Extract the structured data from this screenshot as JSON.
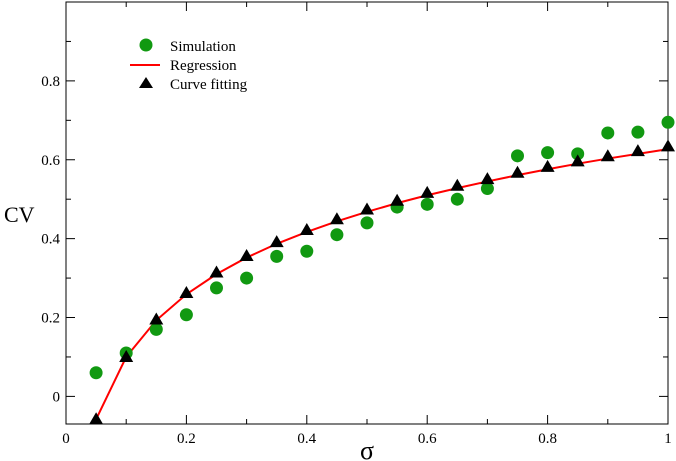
{
  "chart_data": {
    "type": "scatter",
    "xlabel": "σ",
    "ylabel": "CV",
    "xlim": [
      0,
      1
    ],
    "ylim": [
      -0.07,
      1.0
    ],
    "x_ticks": [
      0,
      0.2,
      0.4,
      0.6,
      0.8,
      1
    ],
    "x_tick_labels": [
      "0",
      "0.2",
      "0.4",
      "0.6",
      "0.8",
      "1"
    ],
    "y_ticks": [
      0,
      0.2,
      0.4,
      0.6,
      0.8
    ],
    "y_tick_labels": [
      "0",
      "0.2",
      "0.4",
      "0.6",
      "0.8"
    ],
    "grid": false,
    "legend_position": "top-left",
    "series": [
      {
        "name": "Simulation",
        "kind": "circle-markers",
        "color": "#119911",
        "x": [
          0.05,
          0.1,
          0.15,
          0.2,
          0.25,
          0.3,
          0.35,
          0.4,
          0.45,
          0.5,
          0.55,
          0.6,
          0.65,
          0.7,
          0.75,
          0.8,
          0.85,
          0.9,
          0.95,
          1.0
        ],
        "y": [
          0.06,
          0.11,
          0.17,
          0.207,
          0.275,
          0.3,
          0.355,
          0.368,
          0.41,
          0.44,
          0.48,
          0.487,
          0.5,
          0.527,
          0.61,
          0.618,
          0.615,
          0.668,
          0.67,
          0.695
        ]
      },
      {
        "name": "Regression",
        "kind": "line",
        "color": "#ff0000",
        "x": [
          0.05,
          0.1,
          0.15,
          0.2,
          0.25,
          0.3,
          0.35,
          0.4,
          0.45,
          0.5,
          0.55,
          0.6,
          0.65,
          0.7,
          0.75,
          0.8,
          0.85,
          0.9,
          0.95,
          1.0
        ],
        "y": [
          -0.058,
          0.1,
          0.193,
          0.259,
          0.31,
          0.352,
          0.387,
          0.417,
          0.444,
          0.468,
          0.49,
          0.51,
          0.528,
          0.545,
          0.561,
          0.576,
          0.59,
          0.603,
          0.615,
          0.627
        ]
      },
      {
        "name": "Curve fitting",
        "kind": "triangle-markers",
        "color": "#000000",
        "x": [
          0.05,
          0.1,
          0.15,
          0.2,
          0.25,
          0.3,
          0.35,
          0.4,
          0.45,
          0.5,
          0.55,
          0.6,
          0.65,
          0.7,
          0.75,
          0.8,
          0.85,
          0.9,
          0.95,
          1.0
        ],
        "y": [
          -0.058,
          0.1,
          0.195,
          0.262,
          0.314,
          0.356,
          0.391,
          0.422,
          0.449,
          0.474,
          0.496,
          0.516,
          0.534,
          0.551,
          0.567,
          0.582,
          0.596,
          0.609,
          0.622,
          0.634
        ]
      }
    ]
  }
}
